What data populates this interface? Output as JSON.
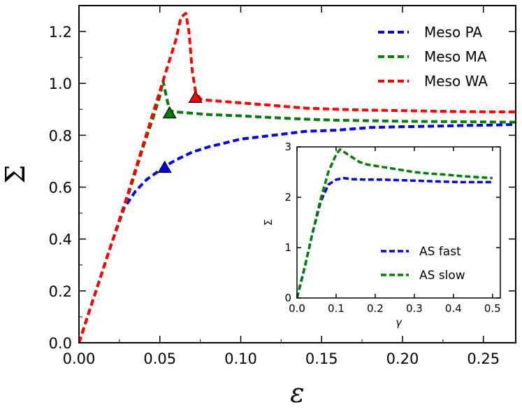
{
  "chart_data": [
    {
      "type": "line",
      "title": "",
      "xlabel": "ε",
      "ylabel": "Σ",
      "xlim": [
        0.0,
        0.27
      ],
      "ylim": [
        0.0,
        1.3
      ],
      "xticks": [
        0.0,
        0.05,
        0.1,
        0.15,
        0.2,
        0.25
      ],
      "xtick_labels": [
        "0.00",
        "0.05",
        "0.10",
        "0.15",
        "0.20",
        "0.25"
      ],
      "yticks": [
        0.0,
        0.2,
        0.4,
        0.6,
        0.8,
        1.0,
        1.2
      ],
      "ytick_labels": [
        "0.0",
        "0.2",
        "0.4",
        "0.6",
        "0.8",
        "1.0",
        "1.2"
      ],
      "legend_position": "top-right",
      "series": [
        {
          "name": "Meso PA",
          "color": "#0000ee",
          "style": "dashed",
          "x": [
            0.0,
            0.01,
            0.02,
            0.028,
            0.035,
            0.042,
            0.05,
            0.053,
            0.06,
            0.07,
            0.08,
            0.09,
            0.1,
            0.12,
            0.14,
            0.16,
            0.18,
            0.2,
            0.22,
            0.24,
            0.26,
            0.27
          ],
          "y": [
            0.0,
            0.19,
            0.38,
            0.52,
            0.585,
            0.63,
            0.665,
            0.68,
            0.705,
            0.735,
            0.755,
            0.77,
            0.785,
            0.8,
            0.815,
            0.82,
            0.83,
            0.833,
            0.835,
            0.838,
            0.84,
            0.842
          ],
          "marker": {
            "x": 0.053,
            "y": 0.675,
            "shape": "triangle"
          }
        },
        {
          "name": "Meso MA",
          "color": "#008000",
          "style": "dashed",
          "x": [
            0.0,
            0.01,
            0.02,
            0.03,
            0.04,
            0.046,
            0.05,
            0.052,
            0.054,
            0.056,
            0.06,
            0.07,
            0.08,
            0.1,
            0.12,
            0.14,
            0.16,
            0.18,
            0.2,
            0.22,
            0.24,
            0.26,
            0.27
          ],
          "y": [
            0.0,
            0.19,
            0.38,
            0.56,
            0.76,
            0.87,
            0.95,
            1.01,
            0.95,
            0.895,
            0.89,
            0.885,
            0.88,
            0.875,
            0.868,
            0.862,
            0.858,
            0.856,
            0.854,
            0.853,
            0.852,
            0.851,
            0.85
          ],
          "marker": {
            "x": 0.056,
            "y": 0.885,
            "shape": "triangle"
          }
        },
        {
          "name": "Meso WA",
          "color": "#ff0000",
          "style": "dashed",
          "x": [
            0.0,
            0.01,
            0.02,
            0.03,
            0.04,
            0.05,
            0.055,
            0.06,
            0.063,
            0.066,
            0.068,
            0.07,
            0.072,
            0.075,
            0.08,
            0.09,
            0.1,
            0.12,
            0.14,
            0.16,
            0.18,
            0.2,
            0.22,
            0.24,
            0.26,
            0.27
          ],
          "y": [
            0.0,
            0.19,
            0.38,
            0.57,
            0.77,
            0.97,
            1.07,
            1.17,
            1.255,
            1.27,
            1.2,
            1.05,
            0.97,
            0.94,
            0.935,
            0.93,
            0.925,
            0.915,
            0.905,
            0.9,
            0.897,
            0.895,
            0.893,
            0.891,
            0.89,
            0.89
          ],
          "marker": {
            "x": 0.072,
            "y": 0.945,
            "shape": "triangle"
          }
        }
      ]
    },
    {
      "type": "line",
      "title": "",
      "xlabel": "γ",
      "ylabel": "Σ",
      "xlim": [
        0.0,
        0.52
      ],
      "ylim": [
        0.0,
        3.0
      ],
      "xticks": [
        0.0,
        0.1,
        0.2,
        0.3,
        0.4,
        0.5
      ],
      "xtick_labels": [
        "0.0",
        "0.1",
        "0.2",
        "0.3",
        "0.4",
        "0.5"
      ],
      "yticks": [
        0,
        1,
        2,
        3
      ],
      "ytick_labels": [
        "0",
        "1",
        "2",
        "3"
      ],
      "legend_position": "bottom-right",
      "series": [
        {
          "name": "AS fast",
          "color": "#0000ee",
          "style": "dashed",
          "x": [
            0.0,
            0.02,
            0.04,
            0.06,
            0.08,
            0.1,
            0.12,
            0.14,
            0.18,
            0.22,
            0.26,
            0.3,
            0.34,
            0.38,
            0.42,
            0.46,
            0.5
          ],
          "y": [
            0.0,
            0.62,
            1.3,
            1.9,
            2.25,
            2.35,
            2.38,
            2.36,
            2.35,
            2.35,
            2.34,
            2.33,
            2.32,
            2.31,
            2.3,
            2.3,
            2.3
          ]
        },
        {
          "name": "AS slow",
          "color": "#008000",
          "style": "dashed",
          "x": [
            0.0,
            0.02,
            0.04,
            0.06,
            0.08,
            0.1,
            0.11,
            0.12,
            0.14,
            0.16,
            0.18,
            0.22,
            0.26,
            0.3,
            0.34,
            0.38,
            0.42,
            0.46,
            0.5
          ],
          "y": [
            0.0,
            0.62,
            1.3,
            1.95,
            2.5,
            2.85,
            2.95,
            2.9,
            2.8,
            2.7,
            2.65,
            2.6,
            2.55,
            2.5,
            2.47,
            2.45,
            2.42,
            2.4,
            2.38
          ]
        }
      ]
    }
  ]
}
